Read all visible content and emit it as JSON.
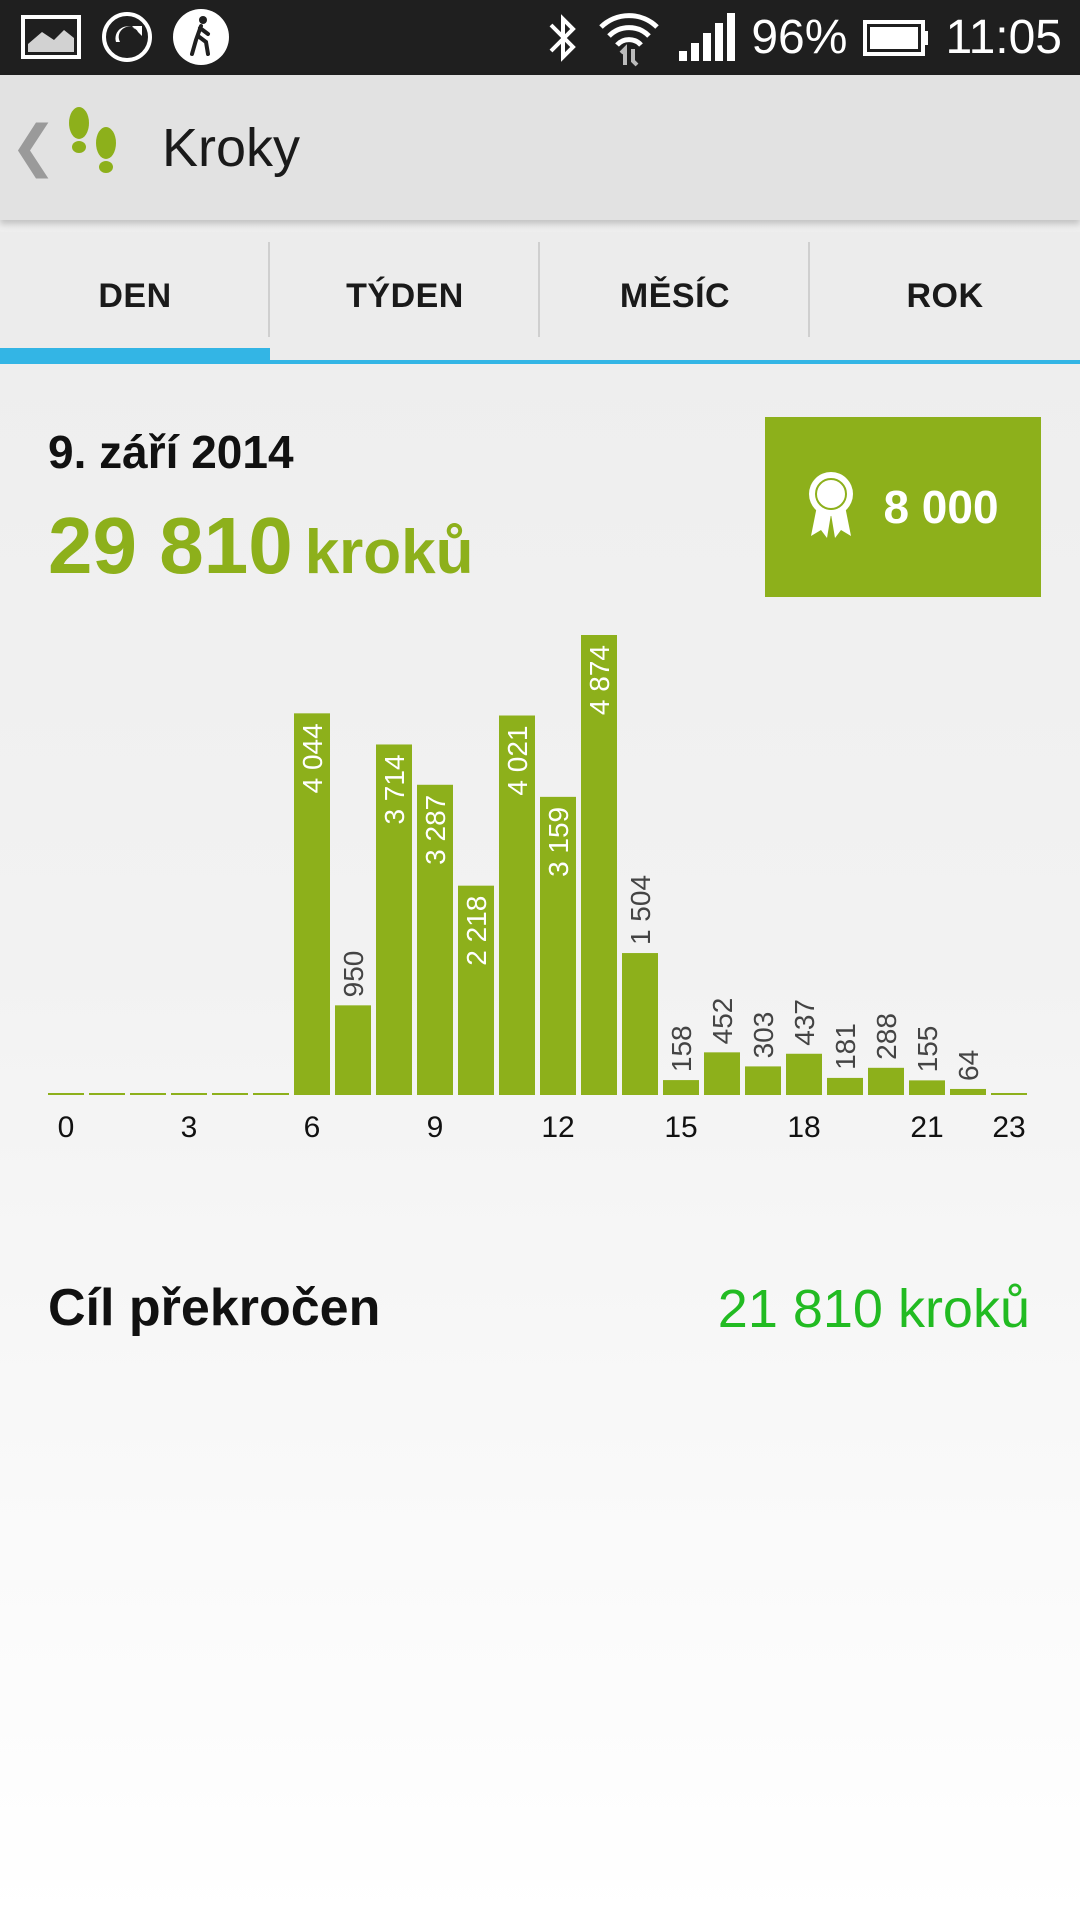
{
  "status_bar": {
    "battery": "96%",
    "time": "11:05",
    "icons": [
      "gallery-icon",
      "sync-icon",
      "walker-icon",
      "bluetooth-icon",
      "wifi-icon",
      "signal-icon",
      "battery-icon"
    ]
  },
  "header": {
    "title": "Kroky",
    "icon": "footsteps-icon"
  },
  "tabs": [
    {
      "label": "DEN",
      "active": true
    },
    {
      "label": "TÝDEN",
      "active": false
    },
    {
      "label": "MĚSÍC",
      "active": false
    },
    {
      "label": "ROK",
      "active": false
    }
  ],
  "summary": {
    "date": "9. září 2014",
    "steps_value": "29 810",
    "steps_unit": "kroků",
    "goal": "8 000",
    "goal_status": "Cíl překročen",
    "goal_diff": "21 810 kroků"
  },
  "colors": {
    "accent_green": "#8db01b",
    "tab_indicator": "#33b5e5",
    "goal_diff_green": "#22bb22"
  },
  "chart_data": {
    "type": "bar",
    "x": [
      0,
      1,
      2,
      3,
      4,
      5,
      6,
      7,
      8,
      9,
      10,
      11,
      12,
      13,
      14,
      15,
      16,
      17,
      18,
      19,
      20,
      21,
      22,
      23
    ],
    "values": [
      0,
      0,
      0,
      0,
      0,
      0,
      4044,
      950,
      3714,
      3287,
      2218,
      4021,
      3159,
      4874,
      1504,
      158,
      452,
      303,
      437,
      181,
      288,
      155,
      64,
      0
    ],
    "value_labels": [
      "",
      "",
      "",
      "",
      "",
      "",
      "4 044",
      "950",
      "3 714",
      "3 287",
      "2 218",
      "4 021",
      "3 159",
      "4 874",
      "1 504",
      "158",
      "452",
      "303",
      "437",
      "181",
      "288",
      "155",
      "64",
      ""
    ],
    "tick_labels": [
      {
        "x": 0,
        "label": "0"
      },
      {
        "x": 3,
        "label": "3"
      },
      {
        "x": 6,
        "label": "6"
      },
      {
        "x": 9,
        "label": "9"
      },
      {
        "x": 12,
        "label": "12"
      },
      {
        "x": 15,
        "label": "15"
      },
      {
        "x": 18,
        "label": "18"
      },
      {
        "x": 21,
        "label": "21"
      },
      {
        "x": 23,
        "label": "23"
      }
    ],
    "title": "",
    "xlabel": "",
    "ylabel": "",
    "ylim": [
      0,
      4874
    ],
    "grid": false
  }
}
